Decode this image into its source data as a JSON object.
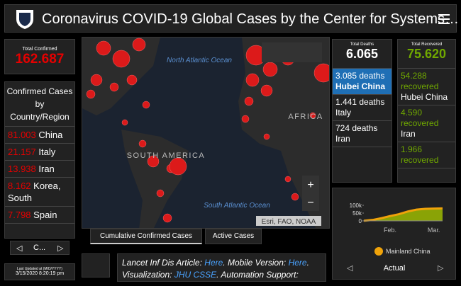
{
  "header": {
    "title": "Coronavirus COVID-19 Global Cases by the Center for Systems…"
  },
  "total_confirmed": {
    "label": "Total Confirmed",
    "value": "162.687"
  },
  "country_list": {
    "title": "Confirmed Cases by Country/Region",
    "items": [
      {
        "count": "81.003",
        "place": "China"
      },
      {
        "count": "21.157",
        "place": "Italy"
      },
      {
        "count": "13.938",
        "place": "Iran"
      },
      {
        "count": "8.162",
        "place": "Korea, South"
      },
      {
        "count": "7.798",
        "place": "Spain"
      }
    ],
    "pager": "C..."
  },
  "last_updated": {
    "label": "Last Updated at (M/D/YYYY)",
    "value": "3/15/2020 8:20:19 pm"
  },
  "map": {
    "labels": [
      "North Atlantic Ocean",
      "AFRICA",
      "SOUTH AMERICA",
      "South Atlantic Ocean"
    ],
    "attribution": "Esri, FAO, NOAA",
    "tabs": [
      "Cumulative Confirmed Cases",
      "Active Cases"
    ]
  },
  "deaths": {
    "label": "Total Deaths",
    "value": "6.065",
    "items": [
      {
        "count": "3.085 deaths",
        "place": "Hubei China"
      },
      {
        "count": "1.441 deaths",
        "place": "Italy"
      },
      {
        "count": "724 deaths",
        "place": "Iran"
      }
    ]
  },
  "recovered": {
    "label": "Total Recovered",
    "value": "75.620",
    "items": [
      {
        "count": "54.288 recovered",
        "place": "Hubei China"
      },
      {
        "count": "4.590 recovered",
        "place": "Iran"
      },
      {
        "count": "1.966 recovered",
        "place": ""
      }
    ]
  },
  "footer_text": {
    "parts": [
      "Lancet Inf Dis Article: ",
      "Here",
      ". Mobile Version: ",
      "Here",
      ".",
      "Visualization: ",
      "JHU CSSE",
      ". Automation Support:"
    ]
  },
  "chart_data": {
    "type": "line",
    "categories": [
      null,
      null,
      null,
      "Feb.",
      null,
      null,
      null,
      null,
      "Mar.",
      null
    ],
    "series": [
      {
        "name": "Mainland China",
        "color": "#f0a30a",
        "values": [
          500,
          6000,
          17000,
          31000,
          43000,
          60000,
          72000,
          77000,
          79000,
          80000
        ]
      }
    ],
    "ylim": [
      0,
      100000
    ],
    "yticks": [
      0,
      {
        "value": 50000,
        "label": "50k"
      },
      {
        "value": 100000,
        "label": "100k"
      }
    ],
    "nav": "Actual"
  }
}
